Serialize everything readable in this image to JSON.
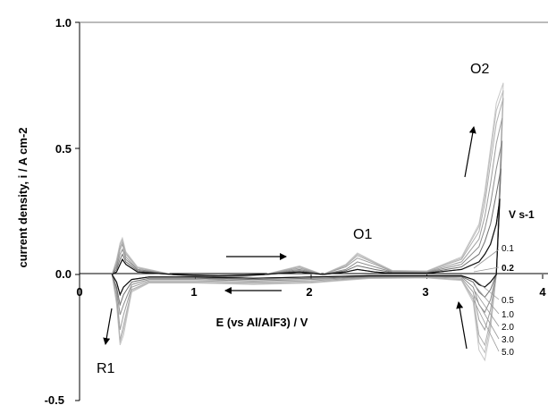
{
  "chart_data": {
    "type": "line",
    "title": "",
    "xlabel": "E (vs Al/AlF3) / V",
    "ylabel": "current density, i / A cm-2",
    "xlim": [
      0,
      4
    ],
    "ylim": [
      -0.5,
      1.0
    ],
    "x_ticks": [
      "0",
      "1",
      "2",
      "3",
      "4"
    ],
    "y_ticks": [
      "1.0",
      "0.5",
      "0.0",
      "-0.5"
    ],
    "grid": false,
    "annotations": {
      "O1": "O1",
      "O2": "O2",
      "R1": "R1",
      "legend_title": "V s-1"
    },
    "legend_title": "V s-1",
    "series": [
      {
        "name": "0.1",
        "label_text": "0.1",
        "color": "#4a4a4a",
        "forward": [
          [
            0.28,
            0.0
          ],
          [
            0.32,
            0.01
          ],
          [
            0.35,
            0.04
          ],
          [
            0.37,
            0.06
          ],
          [
            0.4,
            0.04
          ],
          [
            0.5,
            0.01
          ],
          [
            0.8,
            0.0
          ],
          [
            1.2,
            -0.005
          ],
          [
            1.6,
            0.0
          ],
          [
            1.9,
            0.01
          ],
          [
            2.1,
            0.0
          ],
          [
            2.3,
            0.01
          ],
          [
            2.4,
            0.02
          ],
          [
            2.55,
            0.01
          ],
          [
            2.7,
            0.005
          ],
          [
            3.0,
            0.005
          ],
          [
            3.3,
            0.02
          ],
          [
            3.45,
            0.05
          ],
          [
            3.5,
            0.08
          ],
          [
            3.55,
            0.12
          ],
          [
            3.6,
            0.2
          ],
          [
            3.63,
            0.3
          ]
        ],
        "reverse": [
          [
            3.63,
            0.3
          ],
          [
            3.6,
            0.0
          ],
          [
            3.55,
            -0.03
          ],
          [
            3.5,
            -0.05
          ],
          [
            3.45,
            -0.04
          ],
          [
            3.4,
            -0.02
          ],
          [
            3.3,
            -0.005
          ],
          [
            3.0,
            -0.005
          ],
          [
            2.5,
            -0.005
          ],
          [
            2.0,
            -0.01
          ],
          [
            1.5,
            -0.015
          ],
          [
            1.0,
            -0.01
          ],
          [
            0.6,
            -0.01
          ],
          [
            0.45,
            -0.02
          ],
          [
            0.38,
            -0.05
          ],
          [
            0.35,
            -0.08
          ],
          [
            0.32,
            -0.03
          ],
          [
            0.28,
            0.0
          ]
        ]
      },
      {
        "name": "0.2",
        "label_text": "0.2",
        "color": "#6e6e6e",
        "forward": [
          [
            0.28,
            0.0
          ],
          [
            0.32,
            0.02
          ],
          [
            0.35,
            0.06
          ],
          [
            0.37,
            0.08
          ],
          [
            0.4,
            0.05
          ],
          [
            0.5,
            0.015
          ],
          [
            0.8,
            0.0
          ],
          [
            1.2,
            -0.008
          ],
          [
            1.6,
            0.0
          ],
          [
            1.9,
            0.015
          ],
          [
            2.1,
            0.0
          ],
          [
            2.3,
            0.015
          ],
          [
            2.4,
            0.035
          ],
          [
            2.55,
            0.02
          ],
          [
            2.7,
            0.008
          ],
          [
            3.0,
            0.006
          ],
          [
            3.3,
            0.03
          ],
          [
            3.45,
            0.08
          ],
          [
            3.5,
            0.13
          ],
          [
            3.55,
            0.2
          ],
          [
            3.6,
            0.32
          ],
          [
            3.64,
            0.42
          ]
        ],
        "reverse": [
          [
            3.64,
            0.42
          ],
          [
            3.6,
            0.0
          ],
          [
            3.55,
            -0.06
          ],
          [
            3.5,
            -0.09
          ],
          [
            3.45,
            -0.07
          ],
          [
            3.4,
            -0.03
          ],
          [
            3.3,
            -0.008
          ],
          [
            3.0,
            -0.006
          ],
          [
            2.5,
            -0.008
          ],
          [
            2.0,
            -0.015
          ],
          [
            1.5,
            -0.02
          ],
          [
            1.0,
            -0.015
          ],
          [
            0.6,
            -0.015
          ],
          [
            0.45,
            -0.03
          ],
          [
            0.38,
            -0.08
          ],
          [
            0.35,
            -0.12
          ],
          [
            0.32,
            -0.05
          ],
          [
            0.28,
            0.0
          ]
        ]
      },
      {
        "name": "0.5",
        "label_text": "0.5",
        "color": "#8c8c8c",
        "forward": [
          [
            0.28,
            0.0
          ],
          [
            0.32,
            0.03
          ],
          [
            0.35,
            0.08
          ],
          [
            0.37,
            0.1
          ],
          [
            0.4,
            0.06
          ],
          [
            0.5,
            0.02
          ],
          [
            0.8,
            0.0
          ],
          [
            1.2,
            -0.012
          ],
          [
            1.6,
            0.0
          ],
          [
            1.9,
            0.02
          ],
          [
            2.1,
            0.0
          ],
          [
            2.3,
            0.02
          ],
          [
            2.4,
            0.05
          ],
          [
            2.55,
            0.03
          ],
          [
            2.7,
            0.01
          ],
          [
            3.0,
            0.008
          ],
          [
            3.3,
            0.04
          ],
          [
            3.45,
            0.11
          ],
          [
            3.5,
            0.18
          ],
          [
            3.55,
            0.28
          ],
          [
            3.6,
            0.42
          ],
          [
            3.65,
            0.53
          ]
        ],
        "reverse": [
          [
            3.65,
            0.53
          ],
          [
            3.6,
            0.0
          ],
          [
            3.55,
            -0.1
          ],
          [
            3.5,
            -0.15
          ],
          [
            3.45,
            -0.12
          ],
          [
            3.4,
            -0.05
          ],
          [
            3.3,
            -0.01
          ],
          [
            3.0,
            -0.008
          ],
          [
            2.5,
            -0.01
          ],
          [
            2.0,
            -0.02
          ],
          [
            1.5,
            -0.025
          ],
          [
            1.0,
            -0.02
          ],
          [
            0.6,
            -0.02
          ],
          [
            0.45,
            -0.04
          ],
          [
            0.38,
            -0.12
          ],
          [
            0.35,
            -0.16
          ],
          [
            0.32,
            -0.06
          ],
          [
            0.28,
            0.0
          ]
        ]
      },
      {
        "name": "1.0",
        "label_text": "1.0",
        "color": "#9e9e9e",
        "forward": [
          [
            0.28,
            0.0
          ],
          [
            0.32,
            0.04
          ],
          [
            0.35,
            0.1
          ],
          [
            0.37,
            0.12
          ],
          [
            0.4,
            0.07
          ],
          [
            0.5,
            0.02
          ],
          [
            0.8,
            0.0
          ],
          [
            1.2,
            -0.015
          ],
          [
            1.6,
            0.0
          ],
          [
            1.9,
            0.025
          ],
          [
            2.1,
            0.0
          ],
          [
            2.3,
            0.03
          ],
          [
            2.4,
            0.065
          ],
          [
            2.55,
            0.04
          ],
          [
            2.7,
            0.012
          ],
          [
            3.0,
            0.01
          ],
          [
            3.3,
            0.05
          ],
          [
            3.45,
            0.14
          ],
          [
            3.5,
            0.23
          ],
          [
            3.55,
            0.36
          ],
          [
            3.6,
            0.52
          ],
          [
            3.65,
            0.62
          ]
        ],
        "reverse": [
          [
            3.65,
            0.62
          ],
          [
            3.6,
            0.0
          ],
          [
            3.55,
            -0.14
          ],
          [
            3.5,
            -0.22
          ],
          [
            3.45,
            -0.18
          ],
          [
            3.4,
            -0.07
          ],
          [
            3.3,
            -0.015
          ],
          [
            3.0,
            -0.01
          ],
          [
            2.5,
            -0.012
          ],
          [
            2.0,
            -0.025
          ],
          [
            1.5,
            -0.03
          ],
          [
            1.0,
            -0.025
          ],
          [
            0.6,
            -0.025
          ],
          [
            0.45,
            -0.05
          ],
          [
            0.38,
            -0.16
          ],
          [
            0.35,
            -0.22
          ],
          [
            0.32,
            -0.08
          ],
          [
            0.28,
            0.0
          ]
        ]
      },
      {
        "name": "2.0",
        "label_text": "2.0",
        "color": "#b0b0b0",
        "forward": [
          [
            0.28,
            0.0
          ],
          [
            0.32,
            0.05
          ],
          [
            0.35,
            0.11
          ],
          [
            0.37,
            0.13
          ],
          [
            0.4,
            0.08
          ],
          [
            0.5,
            0.025
          ],
          [
            0.8,
            0.0
          ],
          [
            1.2,
            -0.018
          ],
          [
            1.6,
            0.0
          ],
          [
            1.9,
            0.03
          ],
          [
            2.1,
            0.0
          ],
          [
            2.3,
            0.035
          ],
          [
            2.4,
            0.075
          ],
          [
            2.55,
            0.045
          ],
          [
            2.7,
            0.014
          ],
          [
            3.0,
            0.012
          ],
          [
            3.3,
            0.06
          ],
          [
            3.45,
            0.17
          ],
          [
            3.5,
            0.28
          ],
          [
            3.55,
            0.44
          ],
          [
            3.6,
            0.6
          ],
          [
            3.66,
            0.7
          ]
        ],
        "reverse": [
          [
            3.66,
            0.7
          ],
          [
            3.6,
            0.0
          ],
          [
            3.55,
            -0.18
          ],
          [
            3.5,
            -0.28
          ],
          [
            3.45,
            -0.24
          ],
          [
            3.4,
            -0.09
          ],
          [
            3.3,
            -0.02
          ],
          [
            3.0,
            -0.012
          ],
          [
            2.5,
            -0.014
          ],
          [
            2.0,
            -0.03
          ],
          [
            1.5,
            -0.035
          ],
          [
            1.0,
            -0.03
          ],
          [
            0.6,
            -0.03
          ],
          [
            0.45,
            -0.06
          ],
          [
            0.38,
            -0.2
          ],
          [
            0.35,
            -0.26
          ],
          [
            0.32,
            -0.1
          ],
          [
            0.28,
            0.0
          ]
        ]
      },
      {
        "name": "3.0",
        "label_text": "3.0",
        "color": "#bdbdbd",
        "forward": [
          [
            0.28,
            0.0
          ],
          [
            0.32,
            0.055
          ],
          [
            0.35,
            0.12
          ],
          [
            0.37,
            0.14
          ],
          [
            0.4,
            0.085
          ],
          [
            0.5,
            0.028
          ],
          [
            0.8,
            0.0
          ],
          [
            1.2,
            -0.02
          ],
          [
            1.6,
            0.0
          ],
          [
            1.9,
            0.032
          ],
          [
            2.1,
            0.0
          ],
          [
            2.3,
            0.038
          ],
          [
            2.4,
            0.08
          ],
          [
            2.55,
            0.048
          ],
          [
            2.7,
            0.015
          ],
          [
            3.0,
            0.013
          ],
          [
            3.3,
            0.065
          ],
          [
            3.45,
            0.19
          ],
          [
            3.5,
            0.31
          ],
          [
            3.55,
            0.48
          ],
          [
            3.6,
            0.65
          ],
          [
            3.66,
            0.73
          ]
        ],
        "reverse": [
          [
            3.66,
            0.73
          ],
          [
            3.6,
            0.0
          ],
          [
            3.55,
            -0.2
          ],
          [
            3.5,
            -0.31
          ],
          [
            3.45,
            -0.27
          ],
          [
            3.4,
            -0.1
          ],
          [
            3.3,
            -0.022
          ],
          [
            3.0,
            -0.013
          ],
          [
            2.5,
            -0.015
          ],
          [
            2.0,
            -0.032
          ],
          [
            1.5,
            -0.037
          ],
          [
            1.0,
            -0.032
          ],
          [
            0.6,
            -0.032
          ],
          [
            0.45,
            -0.065
          ],
          [
            0.38,
            -0.22
          ],
          [
            0.35,
            -0.27
          ],
          [
            0.32,
            -0.11
          ],
          [
            0.28,
            0.0
          ]
        ]
      },
      {
        "name": "5.0",
        "label_text": "5.0",
        "color": "#c8c8c8",
        "forward": [
          [
            0.28,
            0.0
          ],
          [
            0.32,
            0.06
          ],
          [
            0.35,
            0.125
          ],
          [
            0.37,
            0.145
          ],
          [
            0.4,
            0.09
          ],
          [
            0.5,
            0.03
          ],
          [
            0.8,
            0.0
          ],
          [
            1.2,
            -0.022
          ],
          [
            1.6,
            0.0
          ],
          [
            1.9,
            0.034
          ],
          [
            2.1,
            0.0
          ],
          [
            2.3,
            0.04
          ],
          [
            2.4,
            0.085
          ],
          [
            2.55,
            0.05
          ],
          [
            2.7,
            0.016
          ],
          [
            3.0,
            0.014
          ],
          [
            3.3,
            0.07
          ],
          [
            3.45,
            0.2
          ],
          [
            3.5,
            0.33
          ],
          [
            3.55,
            0.5
          ],
          [
            3.6,
            0.68
          ],
          [
            3.66,
            0.76
          ]
        ],
        "reverse": [
          [
            3.66,
            0.76
          ],
          [
            3.6,
            0.0
          ],
          [
            3.55,
            -0.22
          ],
          [
            3.5,
            -0.34
          ],
          [
            3.45,
            -0.3
          ],
          [
            3.4,
            -0.11
          ],
          [
            3.3,
            -0.024
          ],
          [
            3.0,
            -0.014
          ],
          [
            2.5,
            -0.016
          ],
          [
            2.0,
            -0.034
          ],
          [
            1.5,
            -0.04
          ],
          [
            1.0,
            -0.034
          ],
          [
            0.6,
            -0.034
          ],
          [
            0.45,
            -0.07
          ],
          [
            0.38,
            -0.24
          ],
          [
            0.35,
            -0.28
          ],
          [
            0.32,
            -0.12
          ],
          [
            0.28,
            0.0
          ]
        ]
      }
    ]
  }
}
